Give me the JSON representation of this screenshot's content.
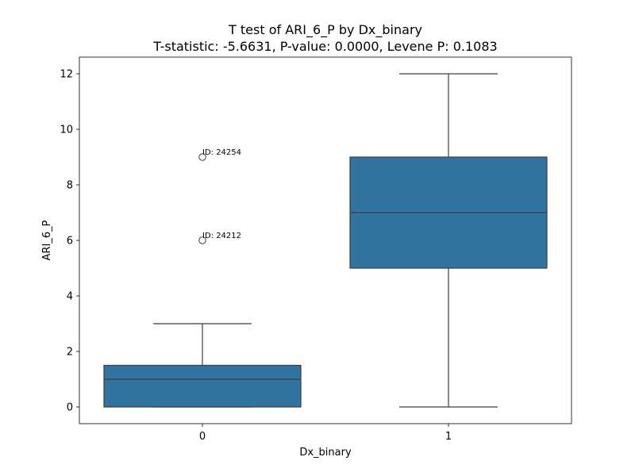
{
  "chart_data": {
    "type": "box",
    "title": "T test of ARI_6_P by Dx_binary",
    "subtitle": "T-statistic: -5.6631, P-value: 0.0000, Levene P: 0.1083",
    "xlabel": "Dx_binary",
    "ylabel": "ARI_6_P",
    "ylim": [
      -0.6,
      12.6
    ],
    "yticks": [
      0,
      2,
      4,
      6,
      8,
      10,
      12
    ],
    "categories": [
      "0",
      "1"
    ],
    "boxes": [
      {
        "category": "0",
        "whisker_low": 0,
        "q1": 0,
        "median": 1,
        "q3": 1.5,
        "whisker_high": 3,
        "outliers": [
          {
            "value": 9,
            "label": "ID: 24254"
          },
          {
            "value": 6,
            "label": "ID: 24212"
          }
        ]
      },
      {
        "category": "1",
        "whisker_low": 0,
        "q1": 5,
        "median": 7,
        "q3": 9,
        "whisker_high": 12,
        "outliers": []
      }
    ],
    "colors": {
      "box_fill": "#3274a1",
      "line": "#3d3d3d",
      "axis": "#000000"
    },
    "grid": false,
    "legend": "none"
  }
}
